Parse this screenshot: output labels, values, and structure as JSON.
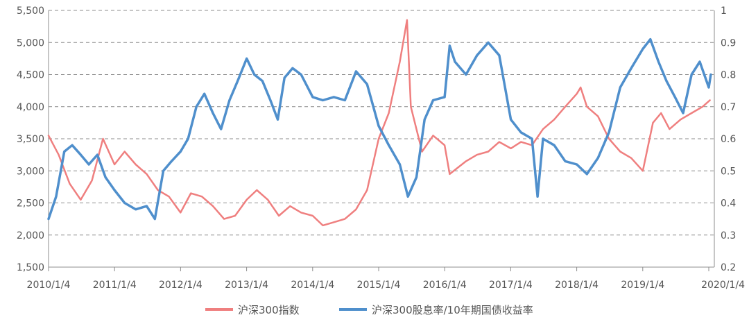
{
  "chart_data": {
    "type": "line",
    "title": "",
    "xlabel": "",
    "ylabel": "",
    "x_ticks": [
      "2010/1/4",
      "2011/1/4",
      "2012/1/4",
      "2013/1/4",
      "2014/1/4",
      "2015/1/4",
      "2016/1/4",
      "2017/1/4",
      "2018/1/4",
      "2019/1/4",
      "2020/1/4"
    ],
    "y_left": {
      "min": 1500,
      "max": 5500,
      "ticks": [
        "1,500",
        "2,000",
        "2,500",
        "3,000",
        "3,500",
        "4,000",
        "4,500",
        "5,000",
        "5,500"
      ]
    },
    "y_right": {
      "min": 0.2,
      "max": 1.0,
      "ticks": [
        "0.2",
        "0.3",
        "0.4",
        "0.5",
        "0.6",
        "0.7",
        "0.8",
        "0.9",
        "1"
      ]
    },
    "grid": "horizontal-dashed",
    "legend_position": "bottom-center",
    "series": [
      {
        "name": "沪深300指数",
        "axis": "left",
        "color": "#ef7f7f",
        "x": [
          "2010-01-04",
          "2010-03-01",
          "2010-05-01",
          "2010-07-01",
          "2010-09-01",
          "2010-11-01",
          "2011-01-04",
          "2011-03-01",
          "2011-05-01",
          "2011-07-01",
          "2011-09-01",
          "2011-11-01",
          "2012-01-04",
          "2012-03-01",
          "2012-05-01",
          "2012-07-01",
          "2012-09-01",
          "2012-11-01",
          "2013-01-04",
          "2013-03-01",
          "2013-05-01",
          "2013-07-01",
          "2013-09-01",
          "2013-11-01",
          "2014-01-04",
          "2014-03-01",
          "2014-05-01",
          "2014-07-01",
          "2014-09-01",
          "2014-11-01",
          "2015-01-04",
          "2015-03-01",
          "2015-05-01",
          "2015-06-10",
          "2015-07-01",
          "2015-09-01",
          "2015-11-01",
          "2016-01-04",
          "2016-02-01",
          "2016-05-01",
          "2016-07-01",
          "2016-09-01",
          "2016-11-01",
          "2017-01-04",
          "2017-03-01",
          "2017-05-01",
          "2017-07-01",
          "2017-09-01",
          "2017-11-01",
          "2018-01-04",
          "2018-01-25",
          "2018-03-01",
          "2018-05-01",
          "2018-07-01",
          "2018-09-01",
          "2018-11-01",
          "2019-01-04",
          "2019-03-01",
          "2019-04-15",
          "2019-06-01",
          "2019-08-01",
          "2019-10-01",
          "2019-12-01",
          "2020-01-10"
        ],
        "values": [
          3550,
          3250,
          2800,
          2550,
          2850,
          3500,
          3100,
          3300,
          3100,
          2950,
          2700,
          2600,
          2350,
          2650,
          2600,
          2450,
          2250,
          2300,
          2550,
          2700,
          2550,
          2300,
          2450,
          2350,
          2300,
          2150,
          2200,
          2250,
          2400,
          2700,
          3500,
          3900,
          4700,
          5350,
          4000,
          3300,
          3550,
          3400,
          2950,
          3150,
          3250,
          3300,
          3450,
          3350,
          3450,
          3400,
          3650,
          3800,
          4000,
          4200,
          4300,
          4000,
          3850,
          3500,
          3300,
          3200,
          3000,
          3750,
          3900,
          3650,
          3800,
          3900,
          4000,
          4100
        ]
      },
      {
        "name": "沪深300股息率/10年期国债收益率",
        "axis": "right",
        "color": "#4f8fcc",
        "x": [
          "2010-01-04",
          "2010-02-15",
          "2010-04-01",
          "2010-05-15",
          "2010-07-01",
          "2010-08-15",
          "2010-10-01",
          "2010-11-15",
          "2011-01-04",
          "2011-03-01",
          "2011-05-01",
          "2011-07-01",
          "2011-08-15",
          "2011-10-01",
          "2011-11-15",
          "2012-01-04",
          "2012-02-15",
          "2012-04-01",
          "2012-05-15",
          "2012-07-01",
          "2012-08-15",
          "2012-10-01",
          "2012-11-15",
          "2013-01-04",
          "2013-02-15",
          "2013-04-01",
          "2013-05-15",
          "2013-06-25",
          "2013-08-01",
          "2013-09-15",
          "2013-11-01",
          "2014-01-04",
          "2014-03-01",
          "2014-05-01",
          "2014-07-01",
          "2014-09-01",
          "2014-11-01",
          "2015-01-04",
          "2015-03-01",
          "2015-05-01",
          "2015-06-15",
          "2015-08-01",
          "2015-09-15",
          "2015-11-01",
          "2016-01-04",
          "2016-02-01",
          "2016-03-01",
          "2016-05-01",
          "2016-07-01",
          "2016-09-01",
          "2016-11-01",
          "2017-01-04",
          "2017-03-01",
          "2017-05-01",
          "2017-06-01",
          "2017-07-01",
          "2017-09-01",
          "2017-11-01",
          "2018-01-04",
          "2018-03-01",
          "2018-05-01",
          "2018-07-01",
          "2018-09-01",
          "2018-11-01",
          "2019-01-04",
          "2019-02-15",
          "2019-04-01",
          "2019-05-15",
          "2019-07-01",
          "2019-08-15",
          "2019-10-01",
          "2019-11-15",
          "2020-01-04",
          "2020-01-15"
        ],
        "values": [
          0.35,
          0.42,
          0.56,
          0.58,
          0.55,
          0.52,
          0.55,
          0.48,
          0.44,
          0.4,
          0.38,
          0.39,
          0.35,
          0.5,
          0.53,
          0.56,
          0.6,
          0.7,
          0.74,
          0.68,
          0.63,
          0.72,
          0.78,
          0.85,
          0.8,
          0.78,
          0.72,
          0.66,
          0.79,
          0.82,
          0.8,
          0.73,
          0.72,
          0.73,
          0.72,
          0.81,
          0.77,
          0.64,
          0.58,
          0.52,
          0.42,
          0.48,
          0.66,
          0.72,
          0.73,
          0.89,
          0.84,
          0.8,
          0.86,
          0.9,
          0.86,
          0.66,
          0.62,
          0.6,
          0.42,
          0.6,
          0.58,
          0.53,
          0.52,
          0.49,
          0.54,
          0.62,
          0.76,
          0.82,
          0.88,
          0.91,
          0.84,
          0.78,
          0.73,
          0.68,
          0.8,
          0.84,
          0.76,
          0.8
        ]
      }
    ]
  }
}
